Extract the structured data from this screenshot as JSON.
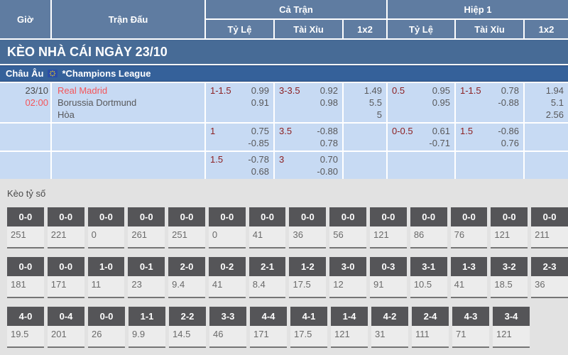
{
  "colors": {
    "header_blue": "#5F7CA1",
    "section_bar_blue": "#476B96",
    "league_bar_blue": "#35619A",
    "row_light_blue": "#C7DAF3",
    "handicap_maroon": "#8C2022",
    "accent_red": "#F4555A",
    "odds_gray": "#58585A",
    "score_chip_gray": "#555558",
    "score_body_gray": "#ECECEC",
    "section_bg": "#E2E2E2",
    "underline_gray": "#757575"
  },
  "table_header": {
    "gio": "Giờ",
    "tran_dau": "Trận Đấu",
    "ca_tran": "Cả Trận",
    "hiep_1": "Hiệp 1",
    "sub": [
      "Tỷ Lệ",
      "Tài Xỉu",
      "1x2",
      "Tỷ Lệ",
      "Tài Xỉu",
      "1x2"
    ]
  },
  "section_bar": "KÈO NHÀ CÁI NGÀY 23/10",
  "league_bar": {
    "region": "Châu Âu",
    "flag_icon": "eu-flag-icon",
    "league": "*Champions League"
  },
  "match": {
    "date": "23/10",
    "time": "02:00",
    "teams": [
      "Real Madrid",
      "Borussia Dortmund",
      "Hòa"
    ],
    "rows": [
      {
        "ft_hdp": {
          "line": "1-1.5",
          "odds": [
            "0.99",
            "0.91"
          ]
        },
        "ft_ou": {
          "line": "3-3.5",
          "odds": [
            "0.92",
            "0.98"
          ]
        },
        "ft_1x2": [
          "1.49",
          "5.5",
          "5"
        ],
        "h1_hdp": {
          "line": "0.5",
          "odds": [
            "0.95",
            "0.95"
          ]
        },
        "h1_ou": {
          "line": "1-1.5",
          "odds": [
            "0.78",
            "-0.88"
          ]
        },
        "h1_1x2": [
          "1.94",
          "5.1",
          "2.56"
        ]
      },
      {
        "ft_hdp": {
          "line": "1",
          "odds": [
            "0.75",
            "-0.85"
          ]
        },
        "ft_ou": {
          "line": "3.5",
          "odds": [
            "-0.88",
            "0.78"
          ]
        },
        "ft_1x2": [],
        "h1_hdp": {
          "line": "0-0.5",
          "odds": [
            "0.61",
            "-0.71"
          ]
        },
        "h1_ou": {
          "line": "1.5",
          "odds": [
            "-0.86",
            "0.76"
          ]
        },
        "h1_1x2": []
      },
      {
        "ft_hdp": {
          "line": "1.5",
          "odds": [
            "-0.78",
            "0.68"
          ]
        },
        "ft_ou": {
          "line": "3",
          "odds": [
            "0.70",
            "-0.80"
          ]
        },
        "ft_1x2": [],
        "h1_hdp": null,
        "h1_ou": null,
        "h1_1x2": []
      }
    ]
  },
  "correct_score": {
    "title": "Kèo tỷ số",
    "rows": [
      [
        {
          "score": "0-0",
          "odd": "251"
        },
        {
          "score": "0-0",
          "odd": "221"
        },
        {
          "score": "0-0",
          "odd": "0"
        },
        {
          "score": "0-0",
          "odd": "261"
        },
        {
          "score": "0-0",
          "odd": "251"
        },
        {
          "score": "0-0",
          "odd": "0"
        },
        {
          "score": "0-0",
          "odd": "41"
        },
        {
          "score": "0-0",
          "odd": "36"
        },
        {
          "score": "0-0",
          "odd": "56"
        },
        {
          "score": "0-0",
          "odd": "121"
        },
        {
          "score": "0-0",
          "odd": "86"
        },
        {
          "score": "0-0",
          "odd": "76"
        },
        {
          "score": "0-0",
          "odd": "121"
        },
        {
          "score": "0-0",
          "odd": "211"
        }
      ],
      [
        {
          "score": "0-0",
          "odd": "181"
        },
        {
          "score": "0-0",
          "odd": "171"
        },
        {
          "score": "1-0",
          "odd": "11"
        },
        {
          "score": "0-1",
          "odd": "23"
        },
        {
          "score": "2-0",
          "odd": "9.4"
        },
        {
          "score": "0-2",
          "odd": "41"
        },
        {
          "score": "2-1",
          "odd": "8.4"
        },
        {
          "score": "1-2",
          "odd": "17.5"
        },
        {
          "score": "3-0",
          "odd": "12"
        },
        {
          "score": "0-3",
          "odd": "91"
        },
        {
          "score": "3-1",
          "odd": "10.5"
        },
        {
          "score": "1-3",
          "odd": "41"
        },
        {
          "score": "3-2",
          "odd": "18.5"
        },
        {
          "score": "2-3",
          "odd": "36"
        }
      ],
      [
        {
          "score": "4-0",
          "odd": "19.5"
        },
        {
          "score": "0-4",
          "odd": "201"
        },
        {
          "score": "0-0",
          "odd": "26"
        },
        {
          "score": "1-1",
          "odd": "9.9"
        },
        {
          "score": "2-2",
          "odd": "14.5"
        },
        {
          "score": "3-3",
          "odd": "46"
        },
        {
          "score": "4-4",
          "odd": "171"
        },
        {
          "score": "4-1",
          "odd": "17.5"
        },
        {
          "score": "1-4",
          "odd": "121"
        },
        {
          "score": "4-2",
          "odd": "31"
        },
        {
          "score": "2-4",
          "odd": "111"
        },
        {
          "score": "4-3",
          "odd": "71"
        },
        {
          "score": "3-4",
          "odd": "121"
        }
      ]
    ]
  }
}
